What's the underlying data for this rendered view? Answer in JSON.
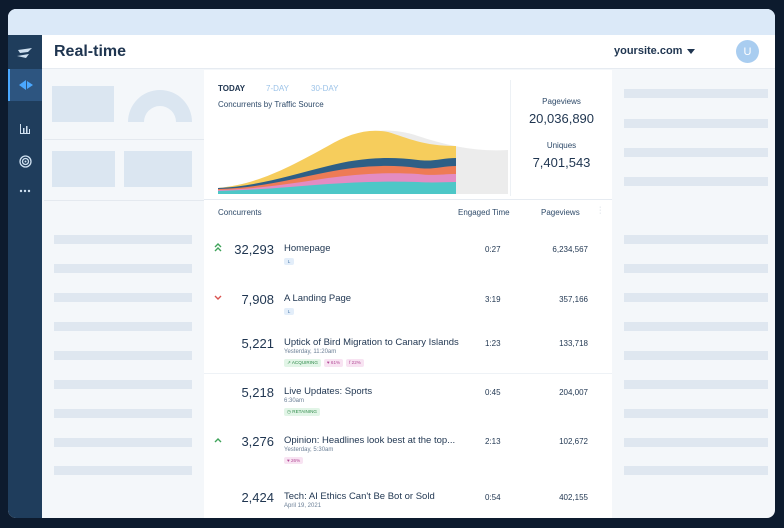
{
  "header": {
    "title": "Real-time",
    "site": "yoursite.com",
    "avatar_initial": "U"
  },
  "sidebar": {
    "items": [
      {
        "icon": "logo-icon"
      },
      {
        "icon": "realtime-icon",
        "active": true
      },
      {
        "icon": "bar-chart-icon"
      },
      {
        "icon": "target-icon"
      },
      {
        "icon": "more-icon"
      }
    ]
  },
  "overview": {
    "tabs": [
      "TODAY",
      "7-DAY",
      "30-DAY"
    ],
    "active_tab": "TODAY",
    "chart_title": "Concurrents by Traffic Source",
    "pageviews_label": "Pageviews",
    "pageviews_value": "20,036,890",
    "uniques_label": "Uniques",
    "uniques_value": "7,401,543"
  },
  "table": {
    "columns": {
      "concurrents": "Concurrents",
      "engaged": "Engaged Time",
      "pageviews": "Pageviews"
    },
    "rows": [
      {
        "arrow": "up-double",
        "concurrents": "32,293",
        "title": "Homepage",
        "subtitle": "",
        "badges": [
          {
            "type": "sq",
            "text": "L"
          }
        ],
        "engaged": "0:27",
        "pageviews": "6,234,567"
      },
      {
        "arrow": "down",
        "concurrents": "7,908",
        "title": "A Landing Page",
        "subtitle": "",
        "badges": [
          {
            "type": "sq",
            "text": "L"
          }
        ],
        "engaged": "3:19",
        "pageviews": "357,166"
      },
      {
        "arrow": "",
        "concurrents": "5,221",
        "title": "Uptick of Bird Migration to Canary Islands",
        "subtitle": "Yesterday, 11:20am",
        "badges": [
          {
            "type": "green",
            "text": "↗ ACQUIRING"
          },
          {
            "type": "pink",
            "text": "♥ 61%"
          },
          {
            "type": "pink",
            "text": "f 22%"
          }
        ],
        "engaged": "1:23",
        "pageviews": "133,718"
      },
      {
        "arrow": "",
        "concurrents": "5,218",
        "title": "Live Updates: Sports",
        "subtitle": "6:30am",
        "badges": [
          {
            "type": "green",
            "text": "◷ RETAINING"
          }
        ],
        "engaged": "0:45",
        "pageviews": "204,007"
      },
      {
        "arrow": "up",
        "concurrents": "3,276",
        "title": "Opinion: Headlines look best at the top...",
        "subtitle": "Yesterday, 5:30am",
        "badges": [
          {
            "type": "pink",
            "text": "♥ 26%"
          }
        ],
        "engaged": "2:13",
        "pageviews": "102,672"
      },
      {
        "arrow": "",
        "concurrents": "2,424",
        "title": "Tech: AI Ethics Can't Be Bot or Sold",
        "subtitle": "April 19, 2021",
        "badges": [],
        "engaged": "0:54",
        "pageviews": "402,155"
      }
    ]
  },
  "colors": {
    "series": [
      "#4dc7c7",
      "#e38cc3",
      "#ee7b55",
      "#2e5f86",
      "#f6cd5c"
    ],
    "ghost": "#ececec"
  }
}
